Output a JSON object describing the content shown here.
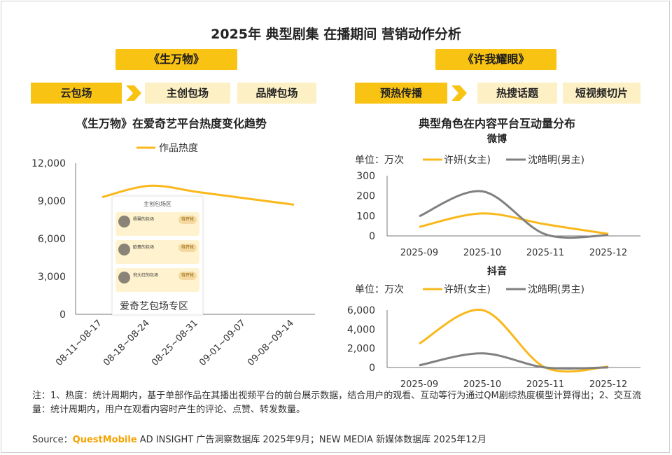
{
  "title": "2025年 典型剧集 在播期间 营销动作分析",
  "left": {
    "drama": "《生万物》",
    "tabs": [
      "云包场",
      "主创包场",
      "品牌包场"
    ],
    "chart_title": "《生万物》在爱奇艺平台热度变化趋势",
    "legend": "作品热度",
    "phone_title": "主创包场区",
    "phone_cards": [
      {
        "name": "杨幂的包场",
        "btn": "待开抢"
      },
      {
        "name": "欧豪的包场",
        "btn": "待开抢"
      },
      {
        "name": "倪大红的包场",
        "btn": "待开抢"
      }
    ],
    "phone_caption": "爱奇艺包场专区"
  },
  "right": {
    "drama": "《许我耀眼》",
    "tabs": [
      "预热传播",
      "热搜话题",
      "短视频切片"
    ],
    "chart_title": "典型角色在内容平台互动量分布",
    "unit_label": "单位：万次"
  },
  "colors": {
    "yellow": "#f9b81b",
    "gray": "#808080",
    "tab_active": "#f9c314",
    "tab_inactive": "#fdf0c4"
  },
  "chart_data": [
    {
      "type": "line",
      "title": "《生万物》在爱奇艺平台热度变化趋势",
      "categories": [
        "08-11~08-17",
        "08-18~08-24",
        "08-25~08-31",
        "09-01~09-07",
        "09-08~09-14"
      ],
      "series": [
        {
          "name": "作品热度",
          "values": [
            9300,
            10200,
            9700,
            9200,
            8700
          ]
        }
      ],
      "ylim": [
        0,
        12000
      ],
      "yticks": [
        "0",
        "3,000",
        "6,000",
        "9,000",
        "12,000"
      ]
    },
    {
      "type": "line",
      "title": "微博",
      "unit": "单位：万次",
      "categories": [
        "2025-09",
        "2025-10",
        "2025-11",
        "2025-12"
      ],
      "series": [
        {
          "name": "许妍(女主)",
          "values": [
            45,
            112,
            58,
            10
          ]
        },
        {
          "name": "沈皓明(男主)",
          "values": [
            98,
            222,
            8,
            4
          ]
        }
      ],
      "ylim": [
        0,
        300
      ],
      "yticks": [
        "0",
        "100",
        "200",
        "300"
      ]
    },
    {
      "type": "line",
      "title": "抖音",
      "unit": "单位：万次",
      "categories": [
        "2025-09",
        "2025-10",
        "2025-11",
        "2025-12"
      ],
      "series": [
        {
          "name": "许妍(女主)",
          "values": [
            2500,
            6000,
            0,
            80
          ]
        },
        {
          "name": "沈皓明(男主)",
          "values": [
            230,
            1480,
            0,
            10
          ]
        }
      ],
      "ylim": [
        0,
        6000
      ],
      "yticks": [
        "0",
        "2,000",
        "4,000",
        "6,000"
      ]
    }
  ],
  "note": "注：1、热度：统计周期内，基于单部作品在其播出视频平台的前台展示数据，结合用户的观看、互动等行为通过QM剧综热度模型计算得出；2、交互流量：统计周期内，用户在观看内容时产生的评论、点赞、转发数量。",
  "source": {
    "prefix": "Source：",
    "brand": "QuestMobile",
    "rest": " AD INSIGHT 广告洞察数据库 2025年9月；NEW MEDIA 新媒体数据库 2025年12月"
  }
}
